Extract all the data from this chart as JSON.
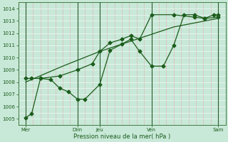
{
  "background_color": "#c8e8d8",
  "grid_color_v": "#d8a8a8",
  "grid_color_h": "#b8d8c8",
  "line_color": "#1a5c1a",
  "xlabel": "Pression niveau de la mer( hPa )",
  "ylim": [
    1004.5,
    1014.5
  ],
  "xlim": [
    0,
    14.0
  ],
  "yticks": [
    1005,
    1006,
    1007,
    1008,
    1009,
    1010,
    1011,
    1012,
    1013,
    1014
  ],
  "day_positions": [
    0.5,
    4.0,
    5.5,
    9.0,
    13.5
  ],
  "day_labels": [
    "Mer",
    "Dim",
    "Jeu",
    "Ven",
    "Sam"
  ],
  "line1_x": [
    0.5,
    0.9,
    1.5,
    2.2,
    2.8,
    3.4,
    4.0,
    4.5,
    5.5,
    6.2,
    7.0,
    7.6,
    8.2,
    9.0,
    9.8,
    10.5,
    11.2,
    11.9,
    12.6,
    13.2,
    13.5
  ],
  "line1_y": [
    1005.1,
    1005.4,
    1008.3,
    1008.2,
    1007.5,
    1007.2,
    1006.6,
    1006.6,
    1007.8,
    1010.6,
    1011.1,
    1011.5,
    1010.5,
    1009.3,
    1009.3,
    1011.0,
    1013.5,
    1013.5,
    1013.2,
    1013.5,
    1013.5
  ],
  "line2_x": [
    0.5,
    0.9,
    1.5,
    2.8,
    4.0,
    5.0,
    5.5,
    6.2,
    7.0,
    7.6,
    8.2,
    9.0,
    10.5,
    11.9,
    12.6,
    13.5
  ],
  "line2_y": [
    1008.3,
    1008.3,
    1008.3,
    1008.5,
    1009.0,
    1009.5,
    1010.5,
    1011.2,
    1011.5,
    1011.8,
    1011.5,
    1013.5,
    1013.5,
    1013.3,
    1013.2,
    1013.3
  ],
  "line3_x": [
    0.5,
    3.0,
    5.5,
    8.0,
    10.5,
    13.5
  ],
  "line3_y": [
    1008.0,
    1009.3,
    1010.5,
    1011.5,
    1012.5,
    1013.2
  ]
}
